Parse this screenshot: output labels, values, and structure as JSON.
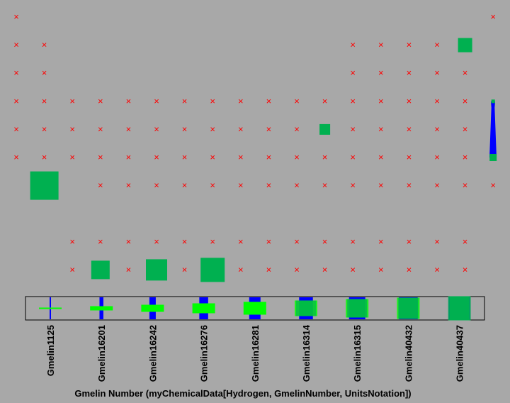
{
  "chart_data": {
    "type": "grid",
    "x_label": "Gmelin Number (myChemicalData[Hydrogen, GmelinNumber, UnitsNotation])",
    "color": "#00b050",
    "marker_color": "#ff0000",
    "cells": [
      [
        "×",
        null,
        null,
        null,
        null,
        null,
        null,
        null,
        null,
        null,
        null,
        null,
        null,
        null,
        null,
        null,
        null,
        "×"
      ],
      [
        "×",
        "×",
        null,
        null,
        null,
        null,
        null,
        null,
        null,
        null,
        null,
        null,
        "×",
        "×",
        "×",
        "×",
        20,
        null
      ],
      [
        "×",
        "×",
        null,
        null,
        null,
        null,
        null,
        null,
        null,
        null,
        null,
        null,
        "×",
        "×",
        "×",
        "×",
        "×",
        null
      ],
      [
        "×",
        "×",
        "×",
        "×",
        "×",
        "×",
        "×",
        "×",
        "×",
        "×",
        "×",
        "×",
        "×",
        "×",
        "×",
        "×",
        "×",
        5
      ],
      [
        "×",
        "×",
        "×",
        "×",
        "×",
        "×",
        "×",
        "×",
        "×",
        "×",
        "×",
        15,
        "×",
        "×",
        "×",
        "×",
        "×",
        null
      ],
      [
        "×",
        "×",
        "×",
        "×",
        "×",
        "×",
        "×",
        "×",
        "×",
        "×",
        "×",
        "×",
        "×",
        "×",
        "×",
        "×",
        "×",
        10
      ],
      [
        null,
        40,
        null,
        "×",
        "×",
        "×",
        "×",
        "×",
        "×",
        "×",
        "×",
        "×",
        "×",
        "×",
        "×",
        "×",
        "×",
        "×"
      ],
      [
        null,
        null,
        null,
        null,
        null,
        null,
        null,
        null,
        null,
        null,
        null,
        null,
        null,
        null,
        null,
        null,
        null,
        null
      ],
      [
        null,
        null,
        "×",
        "×",
        "×",
        "×",
        "×",
        "×",
        "×",
        "×",
        "×",
        "×",
        "×",
        "×",
        "×",
        "×",
        "×",
        null
      ],
      [
        null,
        null,
        "×",
        26,
        "×",
        30,
        "×",
        34,
        "×",
        "×",
        "×",
        "×",
        "×",
        "×",
        "×",
        "×",
        "×",
        null
      ]
    ],
    "categories": [
      "Gmelin1125",
      "Gmelin16201",
      "Gmelin16242",
      "Gmelin16276",
      "Gmelin16281",
      "Gmelin16314",
      "Gmelin16315",
      "Gmelin40432",
      "Gmelin40437"
    ]
  }
}
